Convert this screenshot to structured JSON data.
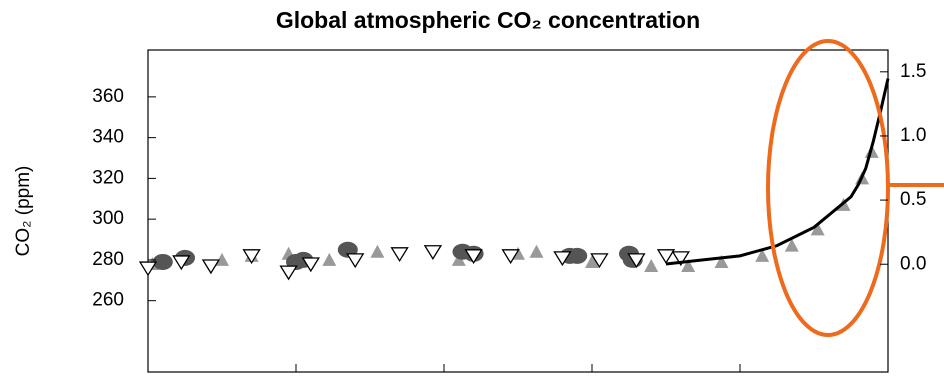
{
  "chart_data": {
    "type": "scatter",
    "title": "Global atmospheric CO₂ concentration",
    "ylabel": "CO₂ (ppm)",
    "xlim": [
      1000,
      2000
    ],
    "xticks": [
      1200,
      1400,
      1600,
      1800
    ],
    "ylim": [
      225,
      383
    ],
    "yticks": [
      260,
      280,
      300,
      320,
      340,
      360
    ],
    "y2lim": [
      -0.84,
      1.67
    ],
    "y2ticks": [
      {
        "value": 0,
        "label": "0.0"
      },
      {
        "value": 0.5,
        "label": "0.5"
      },
      {
        "value": 1,
        "label": "1.0"
      },
      {
        "value": 1.5,
        "label": "1.5"
      }
    ],
    "series": [
      {
        "marker": "triangle-up",
        "color": "#999999",
        "x": [
          1006,
          1100,
          1140,
          1190,
          1245,
          1310,
          1420,
          1500,
          1525,
          1600,
          1680,
          1730,
          1775,
          1830,
          1870,
          1905,
          1940,
          1965,
          1978
        ],
        "values": [
          278,
          280,
          282,
          283,
          280,
          284,
          280,
          283,
          284,
          279,
          277,
          277,
          279,
          282,
          287,
          295,
          307,
          320,
          333
        ]
      },
      {
        "marker": "circle",
        "color": "#555555",
        "x": [
          1020,
          1050,
          1200,
          1210,
          1270,
          1425,
          1440,
          1570,
          1580,
          1650,
          1655
        ],
        "values": [
          279,
          281,
          279,
          280,
          285,
          284,
          283,
          282,
          282,
          283,
          280
        ]
      },
      {
        "marker": "triangle-down",
        "color": "#000000",
        "x": [
          1000,
          1045,
          1085,
          1140,
          1190,
          1220,
          1280,
          1340,
          1385,
          1440,
          1490,
          1560,
          1610,
          1660,
          1700,
          1720
        ],
        "values": [
          276,
          279,
          277,
          282,
          274,
          278,
          280,
          283,
          284,
          282,
          282,
          281,
          280,
          280,
          282,
          281
        ]
      },
      {
        "marker": "line",
        "color": "#000000",
        "x": [
          1700,
          1750,
          1800,
          1850,
          1900,
          1950,
          1960,
          1970,
          1980,
          1990,
          2000
        ],
        "values": [
          278,
          280,
          282,
          287,
          296,
          311,
          317,
          325,
          338,
          353,
          369
        ]
      }
    ]
  }
}
